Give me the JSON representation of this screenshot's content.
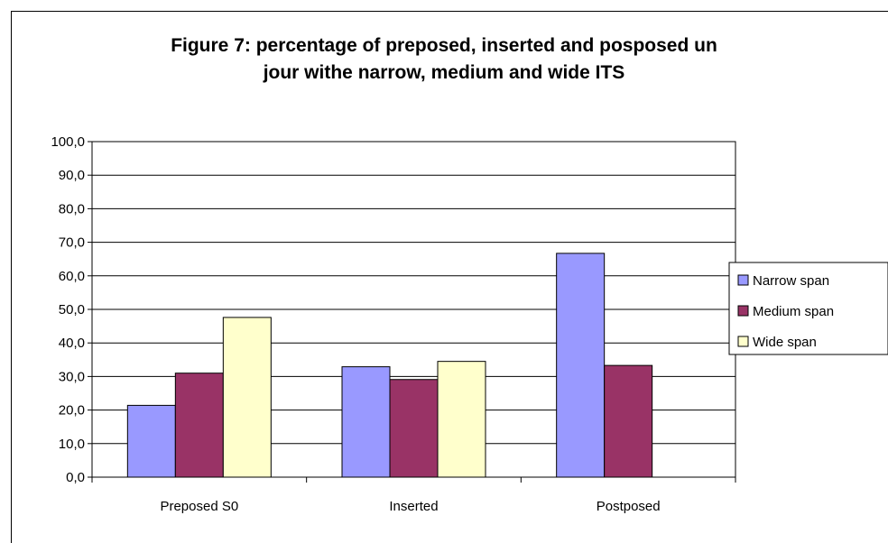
{
  "chart_data": {
    "type": "bar",
    "title_lines": [
      "Figure 7: percentage of preposed, inserted and posposed un",
      "jour withe narrow, medium and wide ITS"
    ],
    "categories": [
      "Preposed S0",
      "Inserted",
      "Postposed"
    ],
    "series": [
      {
        "name": "Narrow span",
        "values": [
          21.4,
          32.9,
          66.7
        ],
        "color": "#9999FF"
      },
      {
        "name": "Medium span",
        "values": [
          31.0,
          29.1,
          33.3
        ],
        "color": "#993366"
      },
      {
        "name": "Wide span",
        "values": [
          47.6,
          34.5,
          0.0
        ],
        "color": "#FFFFCC"
      }
    ],
    "ylim": [
      0,
      100
    ],
    "yticks": [
      "0,0",
      "10,0",
      "20,0",
      "30,0",
      "40,0",
      "50,0",
      "60,0",
      "70,0",
      "80,0",
      "90,0",
      "100,0"
    ],
    "grid": true,
    "legend_position": "right"
  }
}
